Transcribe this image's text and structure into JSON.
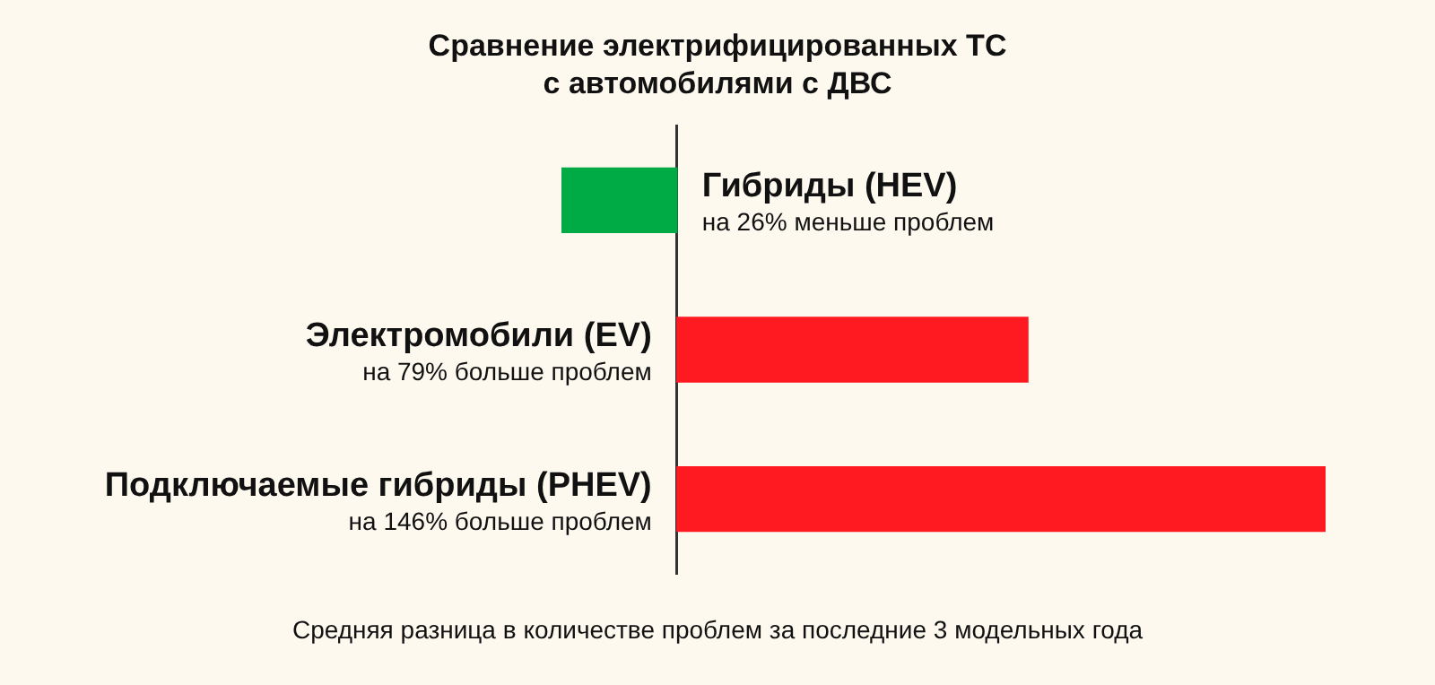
{
  "chart_data": {
    "type": "bar",
    "orientation": "horizontal",
    "title": "Сравнение электрифицированных ТС\nс автомобилями с ДВС",
    "categories": [
      "Гибриды (HEV)",
      "Электромобили (EV)",
      "Подключаемые гибриды (PHEV)"
    ],
    "values": [
      -26,
      79,
      146
    ],
    "colors": [
      "#00aa44",
      "#ff1a22",
      "#ff1a22"
    ],
    "value_labels": [
      "на 26% меньше проблем",
      "на 79% больше проблем",
      "на 146% больше проблем"
    ],
    "annotations": [
      "Средняя разница в количестве проблем за последние 3 модельных года"
    ],
    "tick_labels": false,
    "legend": false
  }
}
